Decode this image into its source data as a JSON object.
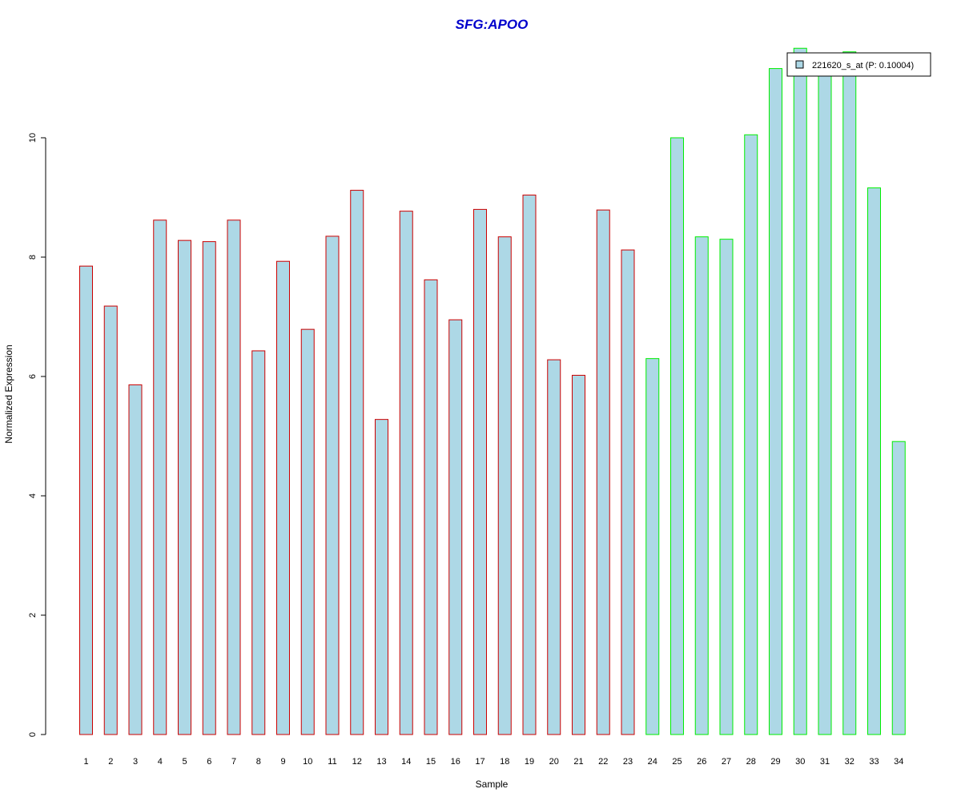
{
  "chart_data": {
    "type": "bar",
    "title": "SFG:APOO",
    "xlabel": "Sample",
    "ylabel": "Normalized Expression",
    "ylim": [
      0,
      11.5
    ],
    "yticks": [
      "0",
      "2",
      "4",
      "6",
      "8",
      "10"
    ],
    "categories": [
      "1",
      "2",
      "3",
      "4",
      "5",
      "6",
      "7",
      "8",
      "9",
      "10",
      "11",
      "12",
      "13",
      "14",
      "15",
      "16",
      "17",
      "18",
      "19",
      "20",
      "21",
      "22",
      "23",
      "24",
      "25",
      "26",
      "27",
      "28",
      "29",
      "30",
      "31",
      "32",
      "33",
      "34"
    ],
    "series": [
      {
        "name": "221620_s_at (P: 0.10004)",
        "values": [
          7.85,
          7.18,
          5.86,
          8.62,
          8.28,
          8.26,
          8.62,
          6.43,
          7.93,
          6.79,
          8.35,
          9.12,
          5.28,
          8.77,
          7.62,
          6.95,
          8.8,
          8.34,
          9.04,
          6.28,
          6.02,
          8.79,
          8.12,
          6.3,
          10.0,
          8.34,
          8.3,
          10.05,
          11.16,
          11.5,
          11.04,
          11.44,
          9.16,
          4.91
        ],
        "fill": "#add8e6",
        "group_colors": [
          "#cc0000",
          "#cc0000",
          "#cc0000",
          "#cc0000",
          "#cc0000",
          "#cc0000",
          "#cc0000",
          "#cc0000",
          "#cc0000",
          "#cc0000",
          "#cc0000",
          "#cc0000",
          "#cc0000",
          "#cc0000",
          "#cc0000",
          "#cc0000",
          "#cc0000",
          "#cc0000",
          "#cc0000",
          "#cc0000",
          "#cc0000",
          "#cc0000",
          "#cc0000",
          "#00ee00",
          "#00ee00",
          "#00ee00",
          "#00ee00",
          "#00ee00",
          "#00ee00",
          "#00ee00",
          "#00ee00",
          "#00ee00",
          "#00ee00",
          "#00ee00"
        ]
      }
    ],
    "legend_position": "top-right",
    "title_color": "#0000cc",
    "grid": false
  }
}
